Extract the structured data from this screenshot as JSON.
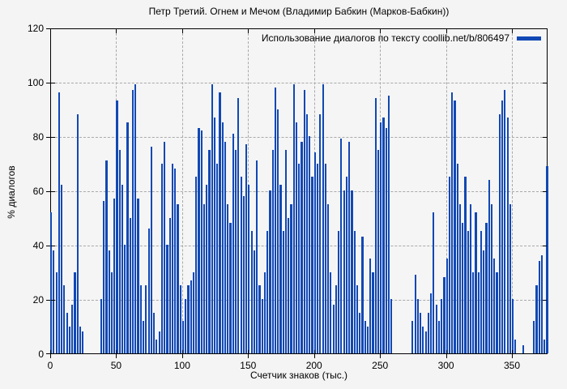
{
  "window": {
    "background": "#f4f4f4"
  },
  "chart_data": {
    "type": "bar",
    "title": "Петр Третий. Огнем и Мечом (Владимир Бабкин (Марков-Бабкин))",
    "legend": "Использование диалогов по тексту coollib.net/b/806497",
    "legend_position": "top-right-inside",
    "xlabel": "Счетчик знаков (тыс.)",
    "ylabel": "% диалогов",
    "xlim": [
      0,
      377
    ],
    "ylim": [
      0,
      120
    ],
    "x_ticks": [
      0,
      50,
      100,
      150,
      200,
      250,
      300,
      350
    ],
    "y_ticks": [
      0,
      20,
      40,
      60,
      80,
      100,
      120
    ],
    "grid": true,
    "bar_color": "#1148b4",
    "grid_color": "#a9a9a9",
    "series": [
      {
        "name": "Использование диалогов по тексту coollib.net/b/806497",
        "points": [
          [
            0,
            52
          ],
          [
            2,
            38
          ],
          [
            4,
            30
          ],
          [
            6,
            96
          ],
          [
            8,
            62
          ],
          [
            10,
            25
          ],
          [
            12,
            15
          ],
          [
            14,
            10
          ],
          [
            16,
            18
          ],
          [
            18,
            30
          ],
          [
            20,
            88
          ],
          [
            22,
            10
          ],
          [
            24,
            8
          ],
          [
            26,
            0
          ],
          [
            28,
            0
          ],
          [
            30,
            0
          ],
          [
            32,
            0
          ],
          [
            34,
            0
          ],
          [
            36,
            0
          ],
          [
            38,
            20
          ],
          [
            40,
            56
          ],
          [
            42,
            71
          ],
          [
            44,
            38
          ],
          [
            46,
            30
          ],
          [
            48,
            57
          ],
          [
            50,
            93
          ],
          [
            52,
            75
          ],
          [
            54,
            62
          ],
          [
            56,
            40
          ],
          [
            58,
            85
          ],
          [
            60,
            50
          ],
          [
            62,
            97
          ],
          [
            64,
            99
          ],
          [
            66,
            57
          ],
          [
            68,
            25
          ],
          [
            70,
            12
          ],
          [
            72,
            25
          ],
          [
            74,
            46
          ],
          [
            76,
            76
          ],
          [
            78,
            15
          ],
          [
            80,
            5
          ],
          [
            82,
            8
          ],
          [
            84,
            70
          ],
          [
            86,
            78
          ],
          [
            88,
            40
          ],
          [
            90,
            50
          ],
          [
            92,
            70
          ],
          [
            94,
            68
          ],
          [
            96,
            55
          ],
          [
            98,
            25
          ],
          [
            100,
            12
          ],
          [
            102,
            20
          ],
          [
            104,
            25
          ],
          [
            106,
            27
          ],
          [
            108,
            30
          ],
          [
            110,
            65
          ],
          [
            112,
            83
          ],
          [
            114,
            82
          ],
          [
            116,
            55
          ],
          [
            118,
            62
          ],
          [
            120,
            75
          ],
          [
            122,
            99
          ],
          [
            124,
            87
          ],
          [
            126,
            70
          ],
          [
            128,
            96
          ],
          [
            130,
            85
          ],
          [
            132,
            78
          ],
          [
            134,
            55
          ],
          [
            136,
            48
          ],
          [
            138,
            81
          ],
          [
            140,
            75
          ],
          [
            142,
            94
          ],
          [
            144,
            65
          ],
          [
            146,
            58
          ],
          [
            148,
            77
          ],
          [
            150,
            62
          ],
          [
            152,
            45
          ],
          [
            154,
            38
          ],
          [
            156,
            71
          ],
          [
            158,
            25
          ],
          [
            160,
            20
          ],
          [
            162,
            30
          ],
          [
            164,
            45
          ],
          [
            166,
            60
          ],
          [
            168,
            75
          ],
          [
            170,
            98
          ],
          [
            172,
            90
          ],
          [
            174,
            62
          ],
          [
            176,
            45
          ],
          [
            178,
            75
          ],
          [
            180,
            50
          ],
          [
            182,
            55
          ],
          [
            184,
            99
          ],
          [
            186,
            85
          ],
          [
            188,
            70
          ],
          [
            190,
            78
          ],
          [
            192,
            97
          ],
          [
            194,
            88
          ],
          [
            196,
            80
          ],
          [
            198,
            65
          ],
          [
            200,
            74
          ],
          [
            202,
            70
          ],
          [
            204,
            88
          ],
          [
            206,
            99
          ],
          [
            208,
            70
          ],
          [
            210,
            55
          ],
          [
            212,
            30
          ],
          [
            214,
            18
          ],
          [
            216,
            25
          ],
          [
            218,
            45
          ],
          [
            220,
            79
          ],
          [
            222,
            60
          ],
          [
            224,
            65
          ],
          [
            226,
            78
          ],
          [
            228,
            60
          ],
          [
            230,
            45
          ],
          [
            232,
            25
          ],
          [
            234,
            15
          ],
          [
            236,
            43
          ],
          [
            238,
            12
          ],
          [
            240,
            10
          ],
          [
            242,
            35
          ],
          [
            244,
            30
          ],
          [
            246,
            94
          ],
          [
            248,
            75
          ],
          [
            250,
            85
          ],
          [
            252,
            87
          ],
          [
            254,
            83
          ],
          [
            256,
            95
          ],
          [
            258,
            20
          ],
          [
            260,
            0
          ],
          [
            262,
            0
          ],
          [
            264,
            0
          ],
          [
            266,
            0
          ],
          [
            268,
            0
          ],
          [
            270,
            0
          ],
          [
            272,
            0
          ],
          [
            274,
            12
          ],
          [
            276,
            29
          ],
          [
            278,
            20
          ],
          [
            280,
            15
          ],
          [
            282,
            10
          ],
          [
            284,
            8
          ],
          [
            286,
            15
          ],
          [
            288,
            22
          ],
          [
            290,
            52
          ],
          [
            292,
            18
          ],
          [
            294,
            12
          ],
          [
            296,
            20
          ],
          [
            298,
            28
          ],
          [
            300,
            35
          ],
          [
            302,
            65
          ],
          [
            304,
            96
          ],
          [
            306,
            93
          ],
          [
            308,
            70
          ],
          [
            310,
            55
          ],
          [
            312,
            48
          ],
          [
            314,
            65
          ],
          [
            316,
            45
          ],
          [
            318,
            55
          ],
          [
            320,
            30
          ],
          [
            322,
            52
          ],
          [
            324,
            30
          ],
          [
            326,
            45
          ],
          [
            328,
            38
          ],
          [
            330,
            48
          ],
          [
            332,
            64
          ],
          [
            334,
            55
          ],
          [
            336,
            35
          ],
          [
            338,
            30
          ],
          [
            340,
            88
          ],
          [
            342,
            93
          ],
          [
            344,
            97
          ],
          [
            346,
            87
          ],
          [
            348,
            55
          ],
          [
            350,
            20
          ],
          [
            352,
            5
          ],
          [
            354,
            0
          ],
          [
            356,
            0
          ],
          [
            358,
            3
          ],
          [
            360,
            0
          ],
          [
            362,
            0
          ],
          [
            364,
            0
          ],
          [
            366,
            12
          ],
          [
            368,
            25
          ],
          [
            370,
            34
          ],
          [
            372,
            36
          ],
          [
            374,
            5
          ],
          [
            376,
            69
          ]
        ]
      }
    ]
  }
}
